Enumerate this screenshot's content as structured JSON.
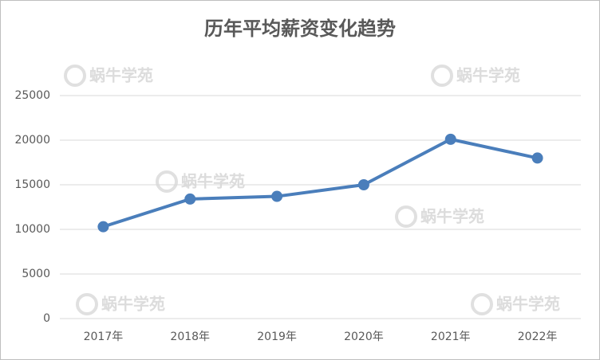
{
  "chart_data": {
    "type": "line",
    "title": "历年平均薪资变化趋势",
    "categories": [
      "2017年",
      "2018年",
      "2019年",
      "2020年",
      "2021年",
      "2022年"
    ],
    "values": [
      10300,
      13400,
      13700,
      15000,
      20100,
      18000
    ],
    "color": "#4a7ebb",
    "ylim": [
      0,
      25000
    ],
    "yticks": [
      0,
      5000,
      10000,
      15000,
      20000,
      25000
    ],
    "grid": true,
    "watermark": "蜗牛学苑"
  }
}
